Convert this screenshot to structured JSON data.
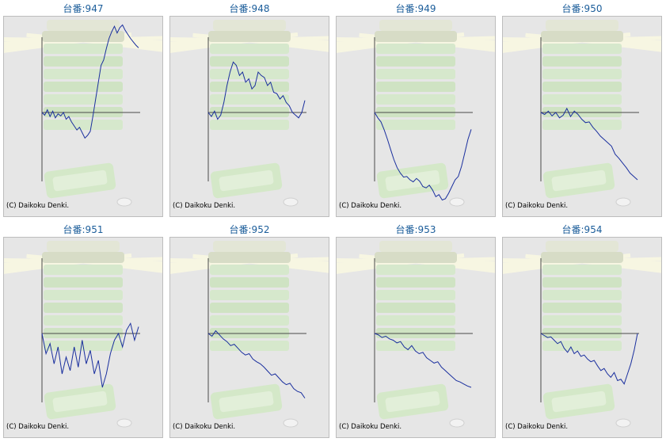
{
  "copyright": "(C) Daikoku Denki.",
  "chart_data": [
    {
      "type": "line",
      "title": "台番:947",
      "values": [
        0,
        -4,
        4,
        -6,
        2,
        -8,
        -2,
        -5,
        0,
        -10,
        -6,
        -14,
        -20,
        -26,
        -22,
        -30,
        -38,
        -34,
        -28,
        -5,
        20,
        45,
        70,
        78,
        95,
        110,
        120,
        128,
        118,
        126,
        130,
        122,
        116,
        110,
        105,
        100,
        96
      ]
    },
    {
      "type": "line",
      "title": "台番:948",
      "values": [
        0,
        -6,
        2,
        -10,
        -4,
        15,
        40,
        60,
        75,
        70,
        55,
        60,
        45,
        50,
        35,
        40,
        60,
        55,
        52,
        40,
        45,
        30,
        28,
        20,
        25,
        15,
        10,
        0,
        -4,
        -8,
        0,
        18
      ]
    },
    {
      "type": "line",
      "title": "台番:949",
      "values": [
        0,
        -8,
        -14,
        -26,
        -40,
        -55,
        -70,
        -82,
        -90,
        -96,
        -95,
        -100,
        -103,
        -98,
        -102,
        -110,
        -112,
        -108,
        -115,
        -125,
        -122,
        -130,
        -128,
        -120,
        -110,
        -100,
        -95,
        -80,
        -60,
        -40,
        -25
      ]
    },
    {
      "type": "line",
      "title": "台番:950",
      "values": [
        0,
        -3,
        2,
        -5,
        0,
        -8,
        -4,
        6,
        -6,
        2,
        -3,
        -10,
        -15,
        -14,
        -22,
        -28,
        -35,
        -40,
        -45,
        -50,
        -62,
        -68,
        -75,
        -82,
        -90,
        -95,
        -100
      ]
    },
    {
      "type": "line",
      "title": "台番:951",
      "values": [
        0,
        -30,
        -15,
        -45,
        -20,
        -60,
        -35,
        -55,
        -20,
        -50,
        -10,
        -45,
        -25,
        -60,
        -40,
        -80,
        -60,
        -30,
        -10,
        0,
        -20,
        5,
        15,
        -10,
        10
      ]
    },
    {
      "type": "line",
      "title": "台番:952",
      "values": [
        0,
        -4,
        4,
        -2,
        -8,
        -12,
        -18,
        -16,
        -22,
        -28,
        -32,
        -30,
        -38,
        -42,
        -45,
        -50,
        -56,
        -62,
        -60,
        -66,
        -72,
        -76,
        -74,
        -82,
        -86,
        -88,
        -96
      ]
    },
    {
      "type": "line",
      "title": "台番:953",
      "values": [
        0,
        -2,
        -6,
        -4,
        -8,
        -10,
        -14,
        -12,
        -20,
        -24,
        -18,
        -26,
        -30,
        -28,
        -36,
        -40,
        -44,
        -42,
        -50,
        -55,
        -60,
        -65,
        -70,
        -72,
        -75,
        -78,
        -80
      ]
    },
    {
      "type": "line",
      "title": "台番:954",
      "values": [
        0,
        -3,
        -6,
        -5,
        -10,
        -15,
        -12,
        -22,
        -28,
        -20,
        -30,
        -26,
        -34,
        -32,
        -38,
        -42,
        -40,
        -48,
        -55,
        -52,
        -60,
        -65,
        -58,
        -70,
        -68,
        -75,
        -60,
        -45,
        -25,
        0
      ]
    }
  ]
}
